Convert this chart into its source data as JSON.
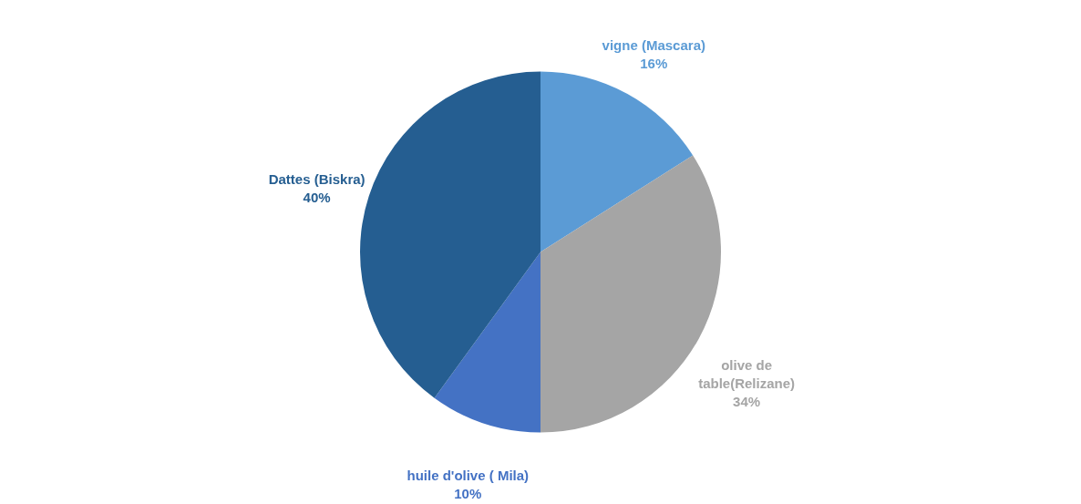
{
  "chart_data": {
    "type": "pie",
    "categories": [
      "vigne (Mascara)",
      "olive de table(Relizane)",
      "huile d'olive ( Mila)",
      "Dattes (Biskra)"
    ],
    "values": [
      16,
      34,
      10,
      40
    ],
    "colors": [
      "#5b9bd5",
      "#a5a5a5",
      "#4472c4",
      "#255e91"
    ],
    "value_labels": [
      "16%",
      "34%",
      "10%",
      "40%"
    ]
  }
}
